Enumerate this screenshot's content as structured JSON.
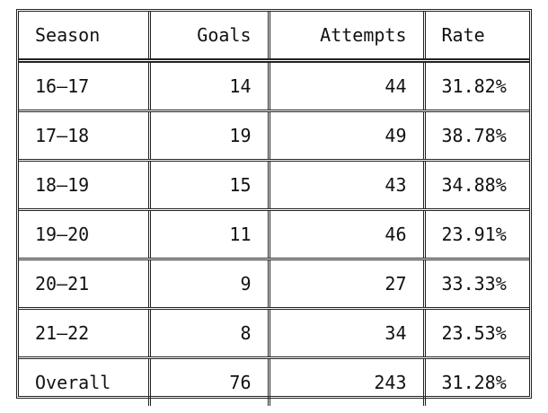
{
  "table": {
    "headers": {
      "season": "Season",
      "goals": "Goals",
      "attempts": "Attempts",
      "rate": "Rate"
    },
    "rows": [
      {
        "season": "16–17",
        "goals": "14",
        "attempts": "44",
        "rate": "31.82%"
      },
      {
        "season": "17–18",
        "goals": "19",
        "attempts": "49",
        "rate": "38.78%"
      },
      {
        "season": "18–19",
        "goals": "15",
        "attempts": "43",
        "rate": "34.88%"
      },
      {
        "season": "19–20",
        "goals": "11",
        "attempts": "46",
        "rate": "23.91%"
      },
      {
        "season": "20–21",
        "goals": "9",
        "attempts": "27",
        "rate": "33.33%"
      },
      {
        "season": "21–22",
        "goals": "8",
        "attempts": "34",
        "rate": "23.53%"
      },
      {
        "season": "Overall",
        "goals": "76",
        "attempts": "243",
        "rate": "31.28%"
      }
    ]
  }
}
